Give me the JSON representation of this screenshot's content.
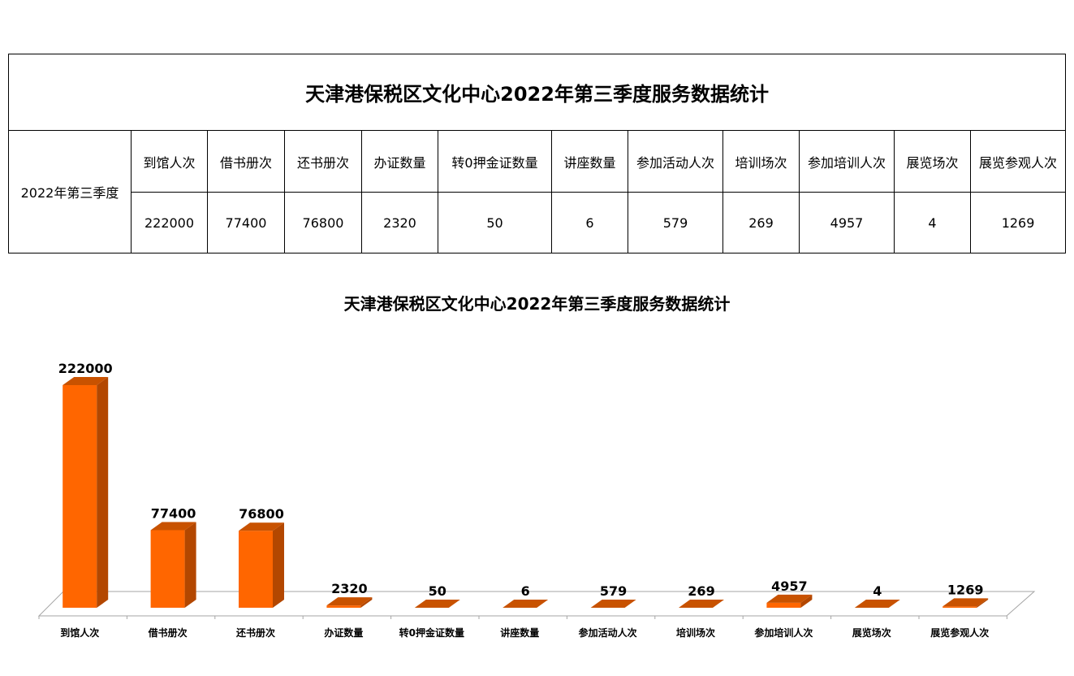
{
  "table": {
    "title": "天津港保税区文化中心2022年第三季度服务数据统计",
    "period": "2022年第三季度",
    "headers": [
      "到馆人次",
      "借书册次",
      "还书册次",
      "办证数量",
      "转0押金证数量",
      "讲座数量",
      "参加活动人次",
      "培训场次",
      "参加培训人次",
      "展览场次",
      "展览参观人次"
    ],
    "values": [
      "222000",
      "77400",
      "76800",
      "2320",
      "50",
      "6",
      "579",
      "269",
      "4957",
      "4",
      "1269"
    ]
  },
  "chart_data": {
    "type": "bar",
    "title": "天津港保税区文化中心2022年第三季度服务数据统计",
    "categories": [
      "到馆人次",
      "借书册次",
      "还书册次",
      "办证数量",
      "转0押金证数量",
      "讲座数量",
      "参加活动人次",
      "培训场次",
      "参加培训人次",
      "展览场次",
      "展览参观人次"
    ],
    "values": [
      222000,
      77400,
      76800,
      2320,
      50,
      6,
      579,
      269,
      4957,
      4,
      1269
    ],
    "ylim": [
      0,
      222000
    ],
    "grid": false,
    "legend": "none",
    "style": "3d-column",
    "colors": {
      "front": "#ff6600",
      "side": "#b34700",
      "top": "#c85200",
      "floor": "#ffffff"
    }
  }
}
